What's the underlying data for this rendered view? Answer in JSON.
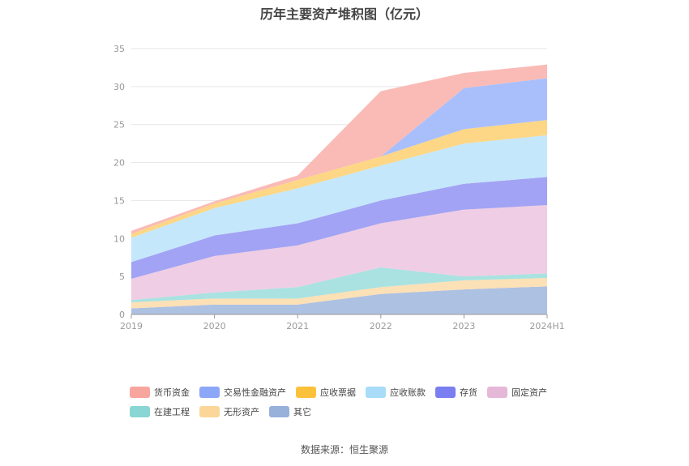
{
  "chart_data": {
    "type": "area",
    "stacked": true,
    "title": "历年主要资产堆积图（亿元）",
    "categories": [
      "2019",
      "2020",
      "2021",
      "2022",
      "2023",
      "2024H1"
    ],
    "ylim": [
      0,
      35
    ],
    "yticks": [
      0,
      5,
      10,
      15,
      20,
      25,
      30,
      35
    ],
    "grid": true,
    "legend_position": "bottom",
    "series": [
      {
        "name": "其它",
        "color": "#adc1e2",
        "values": [
          0.8,
          1.3,
          1.3,
          2.7,
          3.3,
          3.7
        ]
      },
      {
        "name": "无形资产",
        "color": "#fce0b6",
        "values": [
          0.8,
          0.8,
          0.8,
          0.9,
          1.2,
          1.1
        ]
      },
      {
        "name": "在建工程",
        "color": "#a9e2e1",
        "values": [
          0.3,
          0.8,
          1.5,
          2.6,
          0.5,
          0.6
        ]
      },
      {
        "name": "固定资产",
        "color": "#efcde4",
        "values": [
          2.8,
          4.8,
          5.5,
          5.8,
          8.8,
          9.0
        ]
      },
      {
        "name": "存货",
        "color": "#a2a3f4",
        "values": [
          2.2,
          2.7,
          2.9,
          3.0,
          3.4,
          3.7
        ]
      },
      {
        "name": "应收账款",
        "color": "#c4e7fb",
        "values": [
          3.2,
          3.6,
          4.6,
          4.6,
          5.3,
          5.5
        ]
      },
      {
        "name": "应收票据",
        "color": "#fdd785",
        "values": [
          0.5,
          0.6,
          1.1,
          1.2,
          1.9,
          2.0
        ]
      },
      {
        "name": "交易性金融资产",
        "color": "#a9bffc",
        "values": [
          0,
          0,
          0,
          0,
          5.4,
          5.5
        ]
      },
      {
        "name": "货币资金",
        "color": "#fabbb6",
        "values": [
          0.4,
          0.3,
          0.6,
          8.6,
          2.0,
          1.8
        ]
      }
    ]
  },
  "legend": [
    {
      "name": "货币资金",
      "color": "#f8a59d"
    },
    {
      "name": "交易性金融资产",
      "color": "#8ca6f8"
    },
    {
      "name": "应收票据",
      "color": "#fcc13b"
    },
    {
      "name": "应收账款",
      "color": "#a8dcf8"
    },
    {
      "name": "存货",
      "color": "#7b7ef0"
    },
    {
      "name": "固定资产",
      "color": "#e6b8d8"
    },
    {
      "name": "在建工程",
      "color": "#8ad6d4"
    },
    {
      "name": "无形资产",
      "color": "#fcd699"
    },
    {
      "name": "其它",
      "color": "#98b1da"
    }
  ],
  "source": "数据来源：恒生聚源"
}
